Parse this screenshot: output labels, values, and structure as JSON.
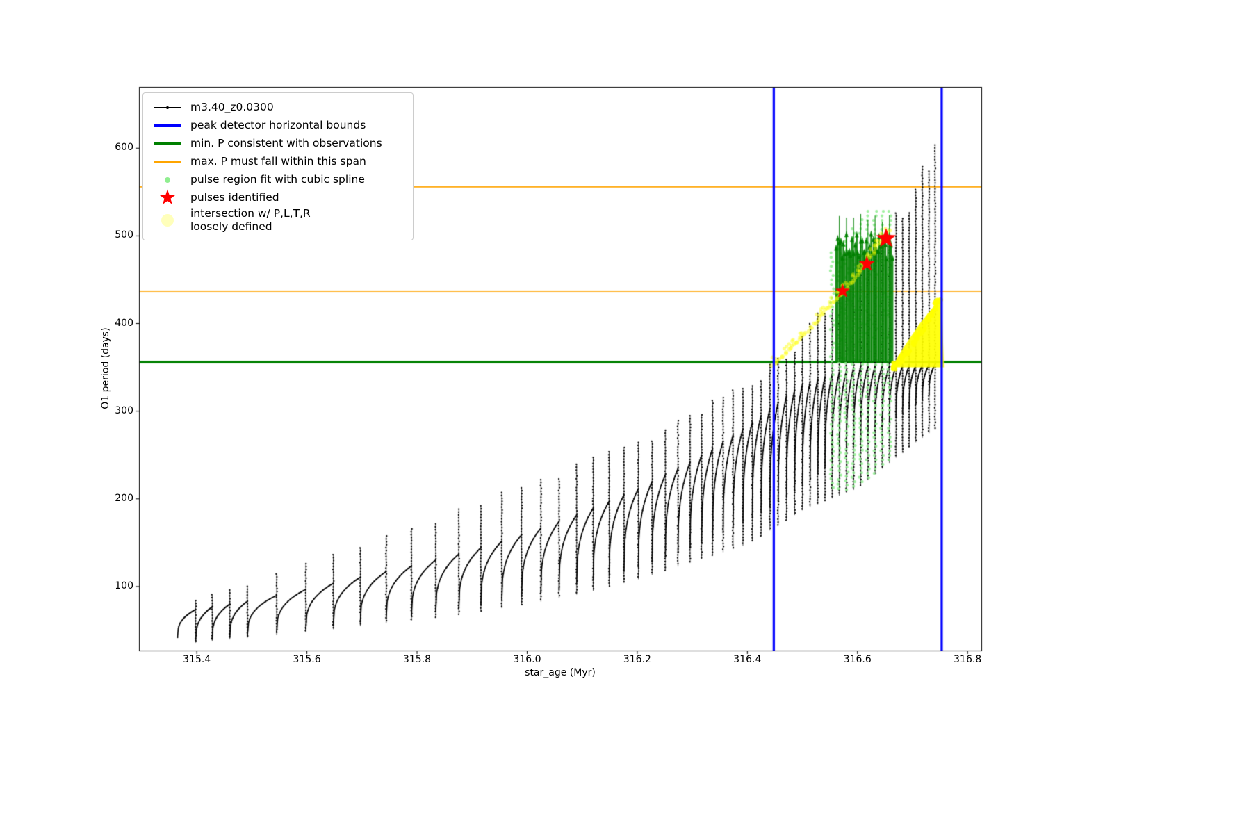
{
  "legend": {
    "items": [
      {
        "label": "m3.40_z0.0300",
        "color": "#000000"
      },
      {
        "label": "peak detector horizontal bounds",
        "color": "#0000ff"
      },
      {
        "label": "min. P consistent with observations",
        "color": "#008000"
      },
      {
        "label": "max. P must fall within this span",
        "color": "#ffa500"
      },
      {
        "label": "pulse region fit with cubic spline",
        "color": "#90ee90"
      },
      {
        "label": "pulses identified",
        "color": "#ff0000",
        "glyph": "★"
      },
      {
        "label": "intersection w/ P,L,T,R\nloosely defined",
        "color": "#ffffbb"
      }
    ]
  },
  "chart_data": {
    "type": "line",
    "title": "",
    "xlabel": "star_age (Myr)",
    "ylabel": "O1 period (days)",
    "xlim": [
      315.295,
      316.825
    ],
    "ylim": [
      27,
      670
    ],
    "xticks": [
      "315.4",
      "315.6",
      "315.8",
      "316.0",
      "316.2",
      "316.4",
      "316.6",
      "316.8"
    ],
    "yticks": [
      100,
      200,
      300,
      400,
      500,
      600
    ],
    "grid": false,
    "legend_position": "upper left",
    "hlines": [
      {
        "y": 356,
        "color": "#008000",
        "width": 3.5,
        "meaning": "min. P consistent with observations"
      },
      {
        "y": 437,
        "color": "#ffa500",
        "width": 1.8,
        "meaning": "max. P span lower bound"
      },
      {
        "y": 556,
        "color": "#ffa500",
        "width": 1.8,
        "meaning": "max. P span upper bound"
      }
    ],
    "vlines": {
      "x": [
        316.448,
        316.753
      ],
      "color": "#0000ff",
      "width": 3.2,
      "meaning": "peak detector horizontal bounds"
    },
    "main_series": {
      "name": "m3.40_z0.0300",
      "color": "#000000",
      "start_age": 315.365,
      "start_period": 42,
      "spike_ages": [
        315.398,
        315.428,
        315.46,
        315.492,
        315.545,
        315.598,
        315.648,
        315.697,
        315.744,
        315.79,
        315.834,
        315.876,
        315.916,
        315.954,
        315.99,
        316.025,
        316.058,
        316.09,
        316.12,
        316.149,
        316.176,
        316.202,
        316.227,
        316.251,
        316.274,
        316.296,
        316.317,
        316.337,
        316.356,
        316.374,
        316.392,
        316.409,
        316.425,
        316.441,
        316.456,
        316.471,
        316.486,
        316.5,
        316.514,
        316.528,
        316.541,
        316.554,
        316.567,
        316.58,
        316.593,
        316.606,
        316.619,
        316.632,
        316.645,
        316.658,
        316.67,
        316.682,
        316.694,
        316.706,
        316.718,
        316.73,
        316.741
      ],
      "envelope": {
        "age": [
          315.36,
          315.4,
          315.5,
          315.6,
          315.7,
          315.8,
          315.9,
          316.0,
          316.1,
          316.2,
          316.3,
          316.4,
          316.5,
          316.6,
          316.7,
          316.76
        ],
        "low": [
          40,
          38,
          45,
          52,
          60,
          68,
          78,
          90,
          104,
          122,
          145,
          175,
          215,
          265,
          305,
          332
        ],
        "shoulder": [
          70,
          74,
          84,
          97,
          111,
          125,
          141,
          161,
          184,
          211,
          243,
          283,
          331,
          351,
          352,
          354
        ],
        "top": [
          80,
          86,
          102,
          126,
          148,
          166,
          193,
          213,
          236,
          263,
          296,
          324,
          385,
          455,
          545,
          625
        ],
        "streak_low": [
          36,
          36,
          42,
          48,
          55,
          62,
          70,
          80,
          92,
          108,
          128,
          148,
          187,
          212,
          262,
          288
        ]
      }
    },
    "overlays": {
      "pulse_region": {
        "color": "#90ee90",
        "age_range": [
          316.552,
          316.663
        ],
        "period_range": [
          210,
          528
        ]
      },
      "spline_block": {
        "color": "#008000",
        "age_range": [
          316.562,
          316.66
        ],
        "period_base": 356,
        "period_top": 492,
        "tip_top": 528
      },
      "loose_intersection": {
        "color": "#ffff00",
        "arc_age_range": [
          316.446,
          316.66
        ],
        "blob_polygon": [
          [
            316.662,
            350
          ],
          [
            316.757,
            350
          ],
          [
            316.753,
            431
          ],
          [
            316.712,
            399
          ],
          [
            316.682,
            371
          ]
        ]
      },
      "pulses": {
        "color": "#ff0000",
        "points": [
          [
            316.573,
            437,
            11
          ],
          [
            316.617,
            468,
            12
          ],
          [
            316.652,
            497,
            15
          ]
        ]
      }
    }
  }
}
